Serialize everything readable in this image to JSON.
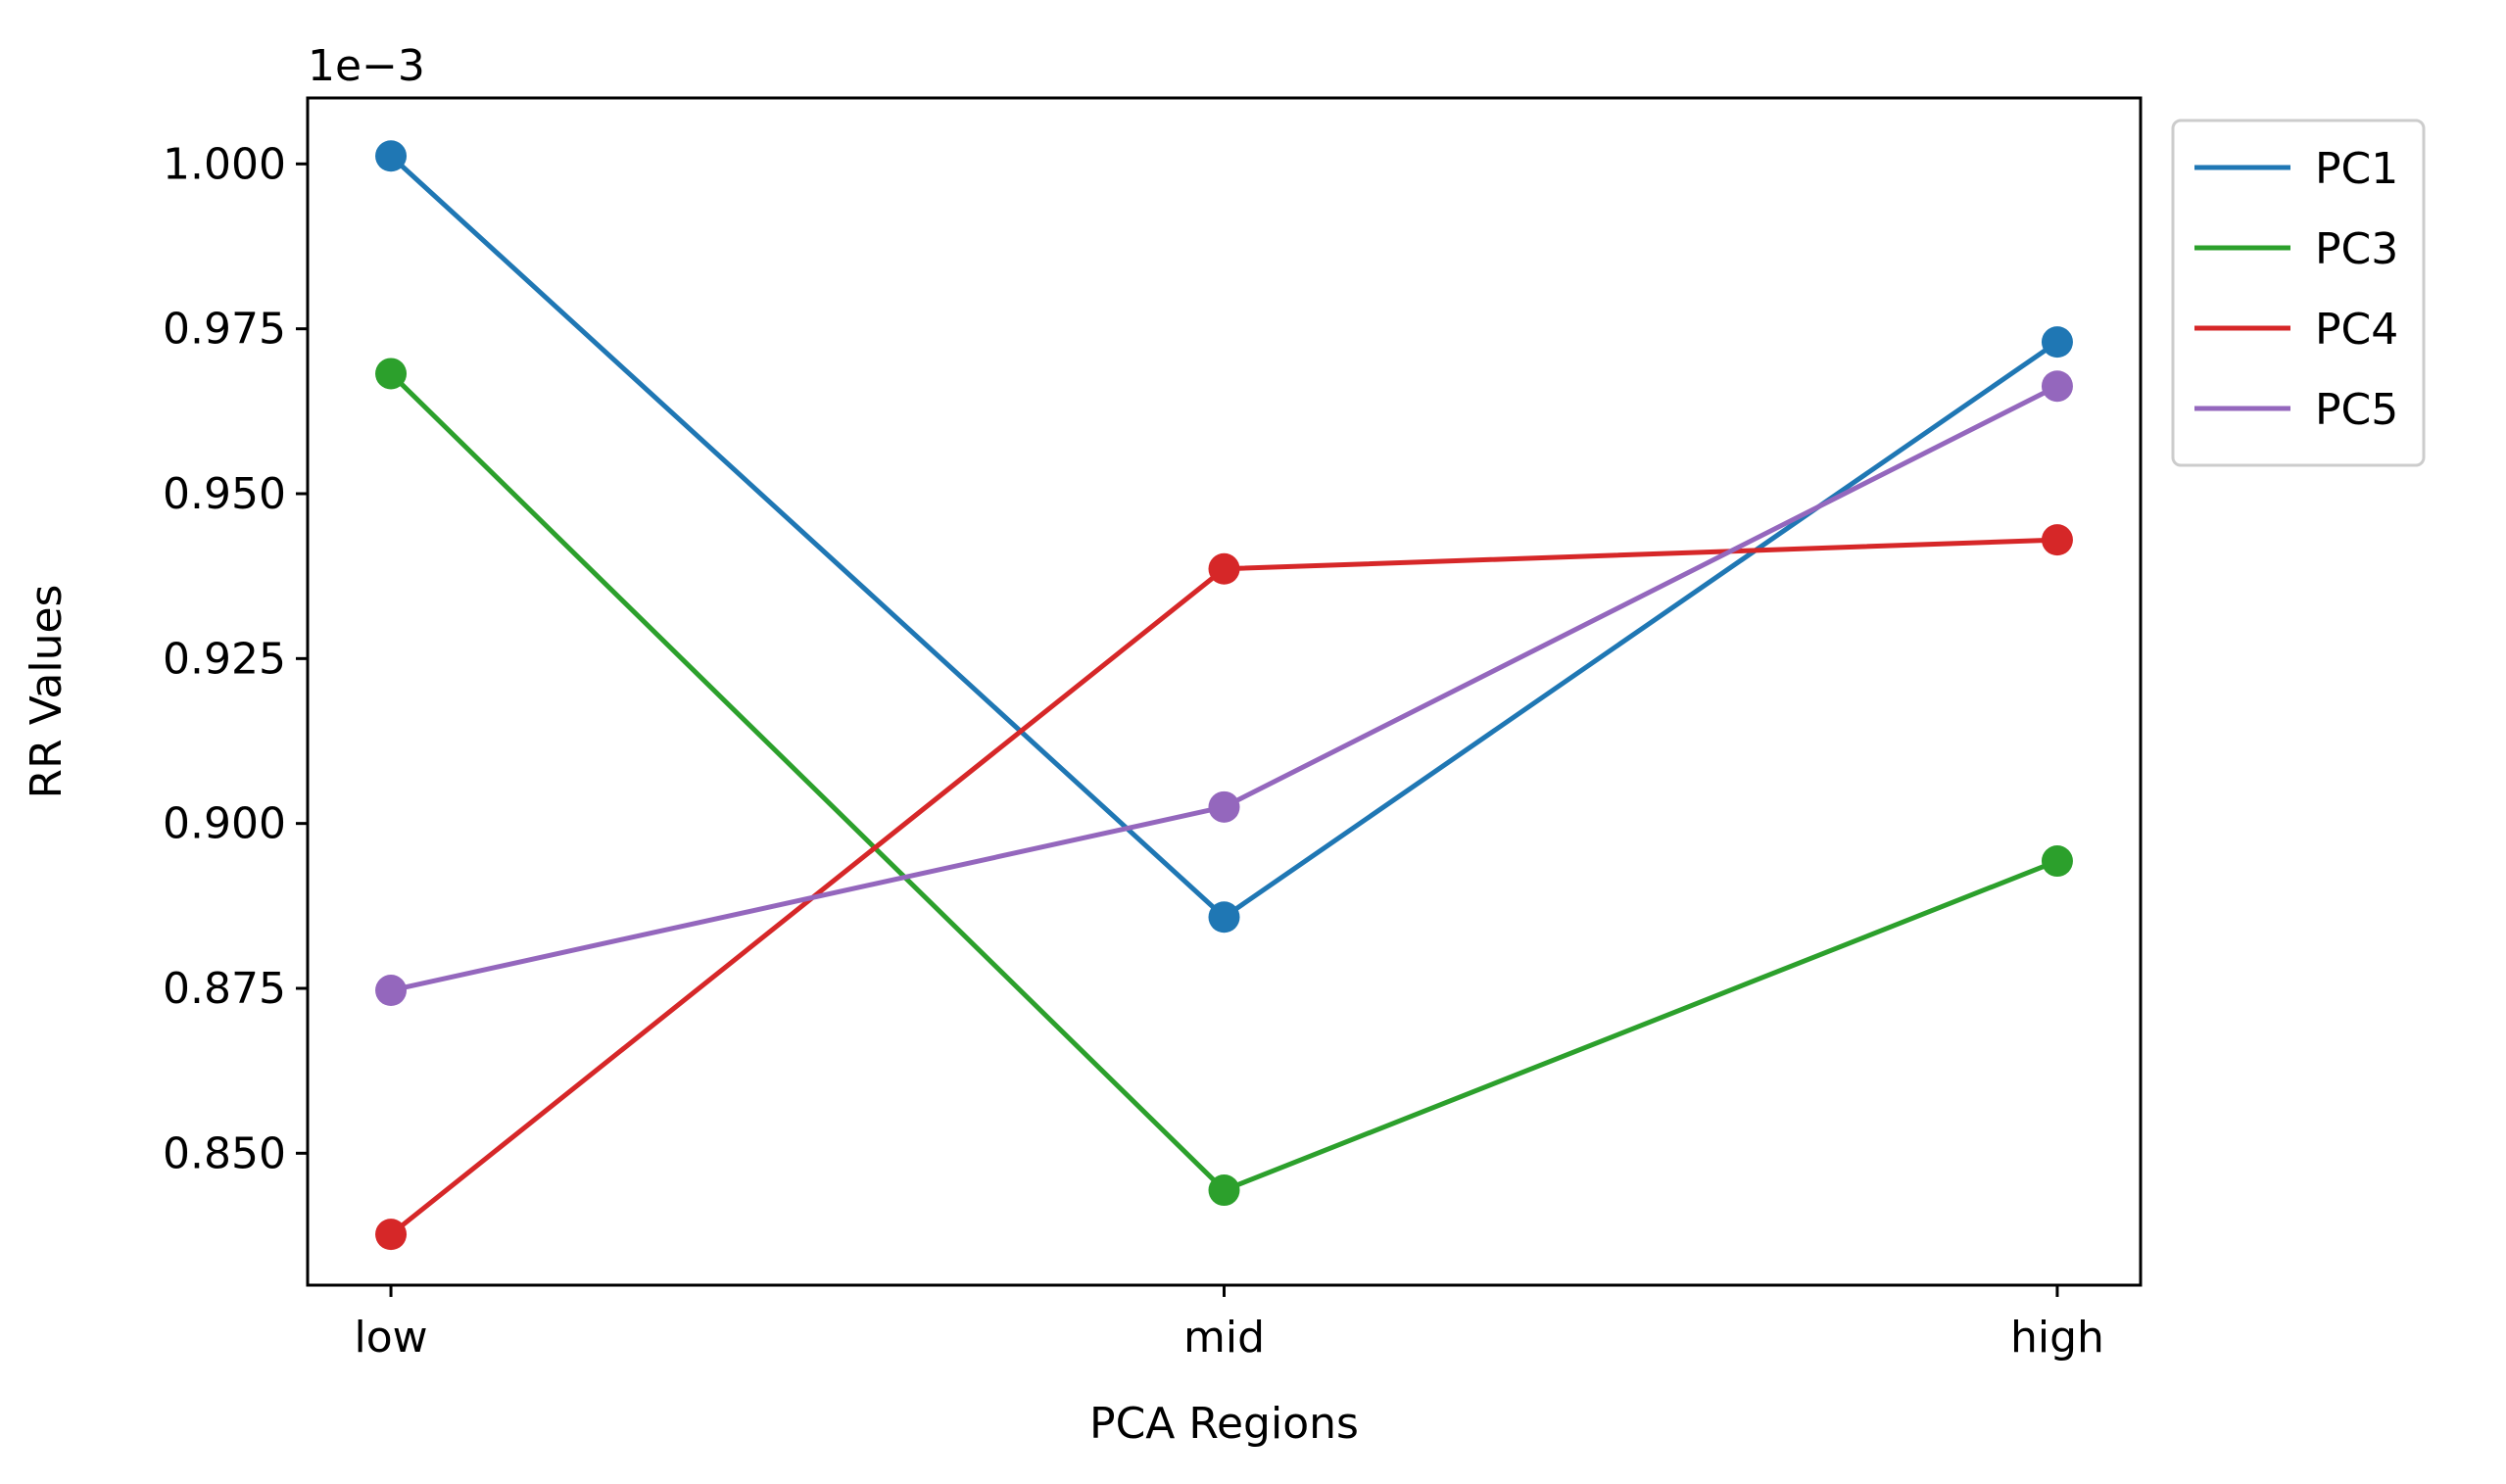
{
  "chart_data": {
    "type": "line",
    "categories": [
      "low",
      "mid",
      "high"
    ],
    "xlabel": "PCA Regions",
    "ylabel": "RR Values",
    "y_offset_label": "1e−3",
    "y_scale_multiplier": 0.001,
    "ylim": [
      0.00083,
      0.00101
    ],
    "yticks": [
      0.00085,
      0.000875,
      0.0009,
      0.000925,
      0.00095,
      0.000975,
      0.001
    ],
    "ytick_labels": [
      "0.850",
      "0.875",
      "0.900",
      "0.925",
      "0.950",
      "0.975",
      "1.000"
    ],
    "grid": false,
    "legend_position": "outside-top-right",
    "series": [
      {
        "name": "PC1",
        "color": "#1f77b4",
        "values": [
          0.0010012,
          0.0008858,
          0.000973
        ]
      },
      {
        "name": "PC3",
        "color": "#2ca02c",
        "values": [
          0.0009682,
          0.0008444,
          0.0008943
        ]
      },
      {
        "name": "PC4",
        "color": "#d62728",
        "values": [
          0.0008377,
          0.0009386,
          0.000943
        ]
      },
      {
        "name": "PC5",
        "color": "#9467bd",
        "values": [
          0.0008747,
          0.0009025,
          0.0009663
        ]
      }
    ]
  }
}
